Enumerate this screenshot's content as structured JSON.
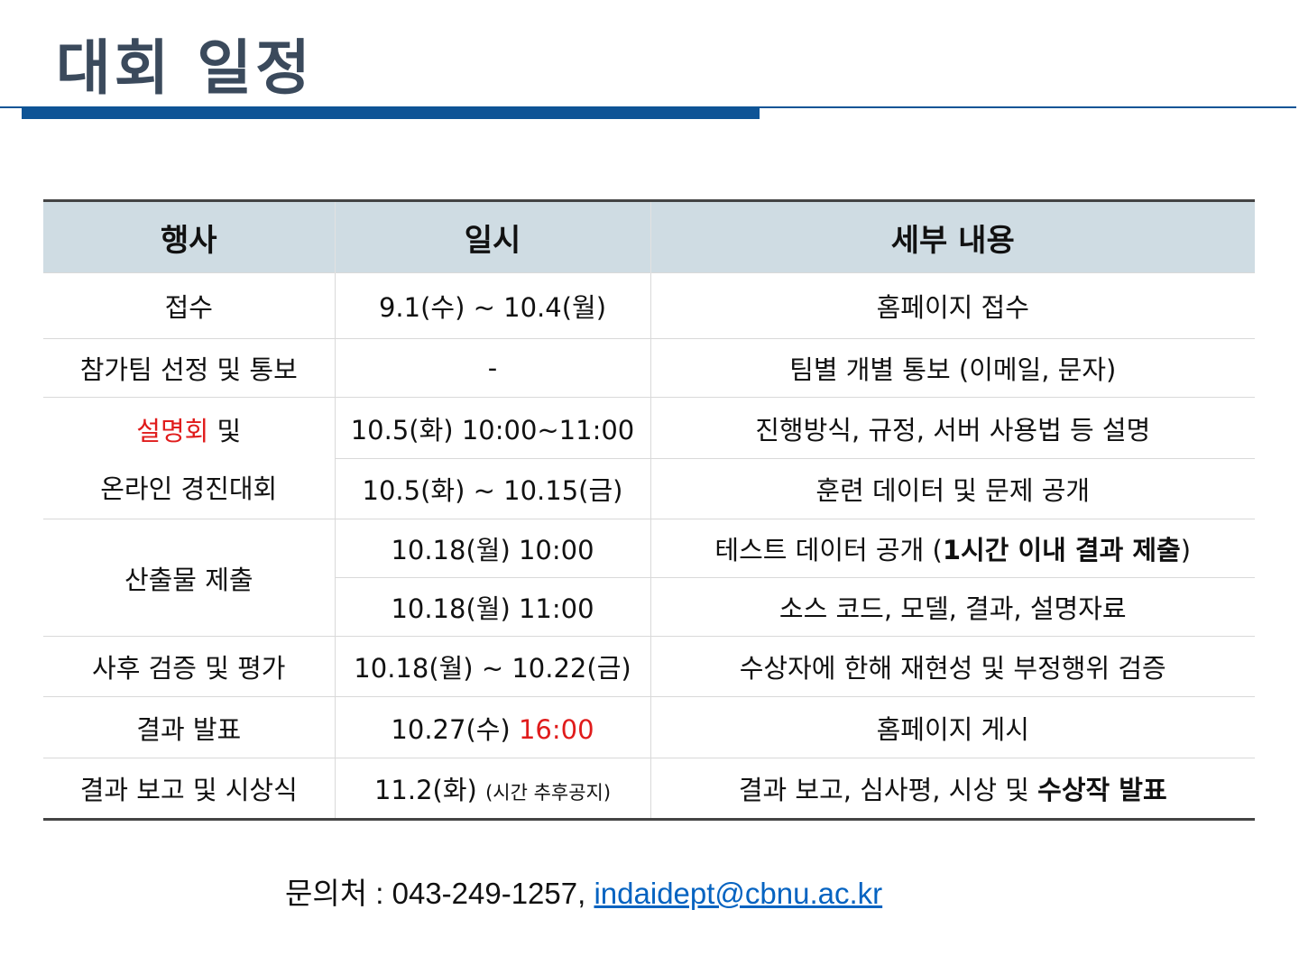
{
  "title": "대회 일정",
  "colors": {
    "accent": "#0e5496",
    "header_bg": "#cfdce3",
    "highlight": "#e01b1b",
    "link": "#0563c1"
  },
  "table": {
    "headers": [
      "행사",
      "일시",
      "세부 내용"
    ],
    "rows": [
      {
        "event": "접수",
        "date": "9.1(수) ~ 10.4(월)",
        "detail": "홈페이지 접수"
      },
      {
        "event": "참가팀 선정 및 통보",
        "date": "-",
        "detail": "팀별 개별 통보 (이메일, 문자)"
      },
      {
        "event_highlight": "설명회",
        "event_rest": " 및",
        "event_line2": "온라인 경진대회",
        "sub": [
          {
            "date": "10.5(화) 10:00~11:00",
            "detail": "진행방식, 규정, 서버 사용법 등 설명"
          },
          {
            "date": "10.5(화) ~ 10.15(금)",
            "detail": "훈련 데이터 및 문제 공개"
          }
        ]
      },
      {
        "event": "산출물 제출",
        "sub": [
          {
            "date": "10.18(월) 10:00",
            "detail_prefix": "테스트 데이터 공개 (",
            "detail_bold": "1시간 이내 결과 제출",
            "detail_suffix": ")"
          },
          {
            "date": "10.18(월) 11:00",
            "detail": "소스 코드, 모델, 결과, 설명자료"
          }
        ]
      },
      {
        "event": "사후 검증 및 평가",
        "date": "10.18(월) ~ 10.22(금)",
        "detail": "수상자에 한해 재현성 및 부정행위 검증"
      },
      {
        "event": "결과 발표",
        "date_prefix": "10.27(수) ",
        "date_highlight": "16:00",
        "detail": "홈페이지 게시"
      },
      {
        "event": "결과 보고 및 시상식",
        "date_main": "11.2(화) ",
        "date_note": "(시간 추후공지)",
        "detail_prefix": "결과 보고, 심사평, 시상 및 ",
        "detail_bold": "수상작 발표"
      }
    ]
  },
  "contact": {
    "label": "문의처",
    "separator": " : ",
    "phone": "043-249-1257, ",
    "email": "indaidept@cbnu.ac.kr"
  }
}
